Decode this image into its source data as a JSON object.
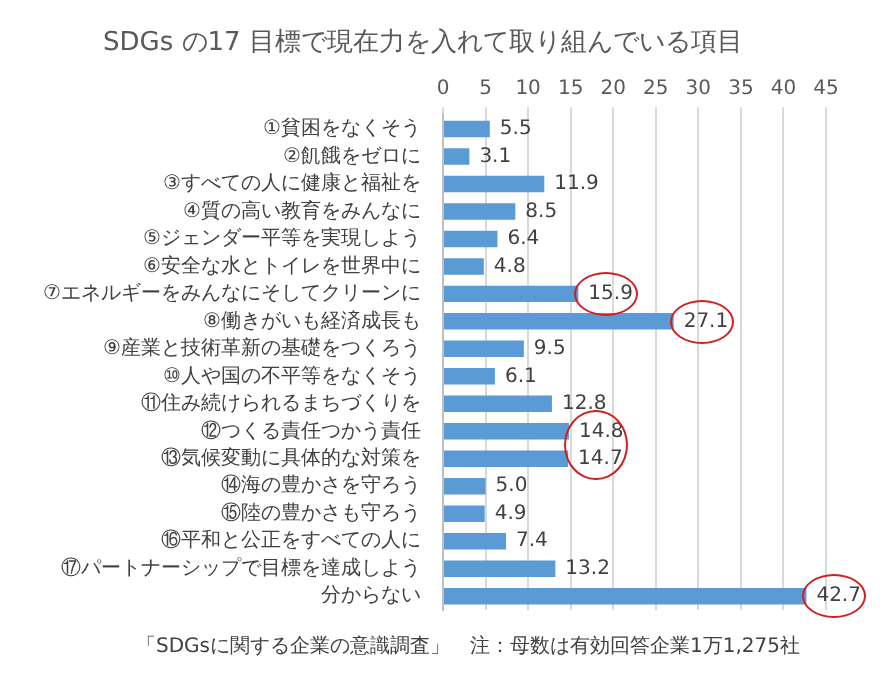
{
  "chart_data": {
    "type": "bar",
    "orientation": "horizontal",
    "title": "SDGs の17 目標で現在力を入れて取り組んでいる項目",
    "categories": [
      "①貧困をなくそう",
      "②飢餓をゼロに",
      "③すべての人に健康と福祉を",
      "④質の高い教育をみんなに",
      "⑤ジェンダー平等を実現しよう",
      "⑥安全な水とトイレを世界中に",
      "⑦エネルギーをみんなにそしてクリーンに",
      "⑧働きがいも経済成長も",
      "⑨産業と技術革新の基礎をつくろう",
      "⑩人や国の不平等をなくそう",
      "⑪住み続けられるまちづくりを",
      "⑫つくる責任つかう責任",
      "⑬気候変動に具体的な対策を",
      "⑭海の豊かさを守ろう",
      "⑮陸の豊かさも守ろう",
      "⑯平和と公正をすべての人に",
      "⑰パートナーシップで目標を達成しよう",
      "分からない"
    ],
    "values": [
      5.5,
      3.1,
      11.9,
      8.5,
      6.4,
      4.8,
      15.9,
      27.1,
      9.5,
      6.1,
      12.8,
      14.8,
      14.7,
      5.0,
      4.9,
      7.4,
      13.2,
      42.7
    ],
    "value_labels": [
      "5.5",
      "3.1",
      "11.9",
      "8.5",
      "6.4",
      "4.8",
      "15.9",
      "27.1",
      "9.5",
      "6.1",
      "12.8",
      "14.8",
      "14.7",
      "5.0",
      "4.9",
      "7.4",
      "13.2",
      "42.7"
    ],
    "color": "#5b9bd5",
    "xlim": [
      0,
      45
    ],
    "xticks": [
      0,
      5,
      10,
      15,
      20,
      25,
      30,
      35,
      40,
      45
    ],
    "grid": "x",
    "legend": false,
    "annotations": [
      "「SDGsに関する企業の意識調査」　注：母数は有効回答企業1万1,275社"
    ]
  }
}
